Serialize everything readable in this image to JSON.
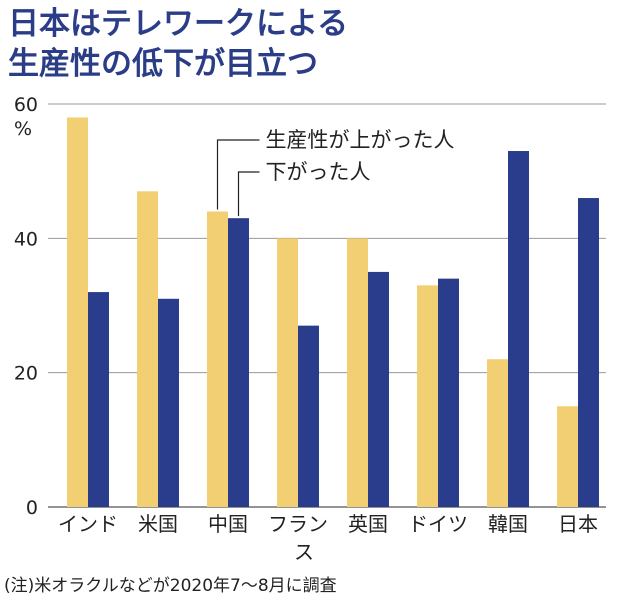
{
  "title_lines": [
    "日本はテレワークによる",
    "生産性の低下が目立つ"
  ],
  "note": "(注)米オラクルなどが2020年7〜8月に調査",
  "colors": {
    "up": "#f3cf74",
    "down": "#293d8c",
    "title": "#2a3d86",
    "grid": "#999999"
  },
  "chart_data": {
    "type": "bar",
    "title": "",
    "xlabel": "",
    "ylabel": "",
    "yunit": "%",
    "ylim": [
      0,
      60
    ],
    "yticks": [
      0,
      20,
      40,
      60
    ],
    "grid": true,
    "categories": [
      "インド",
      "米国",
      "中国",
      "フランス",
      "英国",
      "ドイツ",
      "韓国",
      "日本"
    ],
    "series": [
      {
        "name": "生産性が上がった人",
        "values": [
          58,
          47,
          44,
          40,
          40,
          33,
          22,
          15
        ]
      },
      {
        "name": "下がった人",
        "values": [
          32,
          31,
          43,
          27,
          35,
          34,
          53,
          46
        ]
      }
    ]
  }
}
